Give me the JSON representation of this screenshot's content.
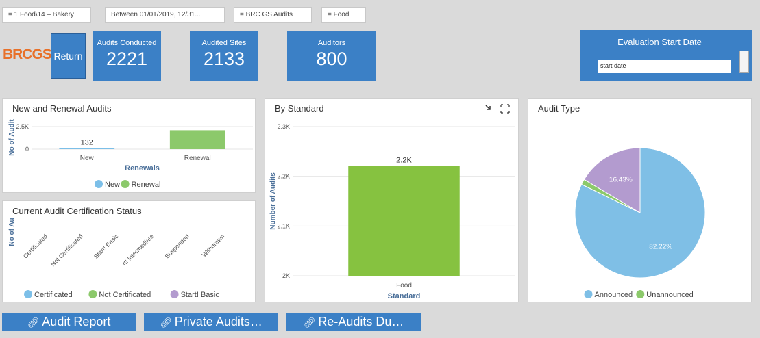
{
  "filters": [
    "= 1 Food\\14 – Bakery",
    "Between 01/01/2019, 12/31...",
    "= BRC GS Audits",
    "= Food"
  ],
  "logo": "BRCGS",
  "return_button": "Return",
  "kpis": [
    {
      "label": "Audits Conducted",
      "value": "2221"
    },
    {
      "label": "Audited Sites",
      "value": "2133"
    },
    {
      "label": "Auditors",
      "value": "800"
    }
  ],
  "date_filter": {
    "title": "Evaluation Start Date",
    "placeholder": "start date"
  },
  "chart_data": [
    {
      "type": "bar",
      "title": "New and Renewal Audits",
      "x_label": "Renewals",
      "y_label": "No of Audit",
      "categories": [
        "New",
        "Renewal"
      ],
      "series": [
        {
          "name": "New",
          "color": "#7cbfe8",
          "values": [
            132,
            null
          ],
          "value_labels": [
            "132",
            null
          ]
        },
        {
          "name": "Renewal",
          "color": "#8cc96b",
          "values": [
            null,
            2089
          ]
        }
      ],
      "ylim": [
        0,
        2800
      ],
      "yticks": [
        0,
        {
          "value": 2500,
          "label": "2.5K"
        }
      ],
      "grid": true
    },
    {
      "type": "rotated-categories",
      "title": "Current Audit Certification Status",
      "y_label": "No of Au",
      "categories": [
        "Certificated",
        "Not Certificated",
        "Start! Basic",
        "rt! Intermediate",
        "Suspended",
        "Withdrawn"
      ],
      "legend": [
        {
          "name": "Certificated",
          "color": "#7cbfe8"
        },
        {
          "name": "Not Certificated",
          "color": "#8cc96b"
        },
        {
          "name": "Start! Basic",
          "color": "#b39bcf"
        }
      ]
    },
    {
      "type": "bar",
      "title": "By Standard",
      "x_label": "Standard",
      "y_label": "Number of Audits",
      "categories": [
        "Food"
      ],
      "series": [
        {
          "name": "Food",
          "color": "#86c240",
          "values": [
            2221
          ],
          "value_labels": [
            "2.2K"
          ]
        }
      ],
      "ylim": [
        2000,
        2300
      ],
      "yticks": [
        {
          "value": 2000,
          "label": "2K"
        },
        {
          "value": 2100,
          "label": "2.1K"
        },
        {
          "value": 2200,
          "label": "2.2K"
        },
        {
          "value": 2300,
          "label": "2.3K"
        }
      ],
      "grid": true
    },
    {
      "type": "pie",
      "title": "Audit Type",
      "labels": [
        "Announced",
        "Unannounced",
        null
      ],
      "values": [
        82.22,
        1.35,
        16.43
      ],
      "value_labels": [
        "82.22%",
        null,
        "16.43%"
      ],
      "colors": [
        "#7fbfe6",
        "#8cc96b",
        "#b39bcf"
      ]
    }
  ],
  "buttons": [
    "Audit Report",
    "Private Audits…",
    "Re-Audits Du…"
  ]
}
